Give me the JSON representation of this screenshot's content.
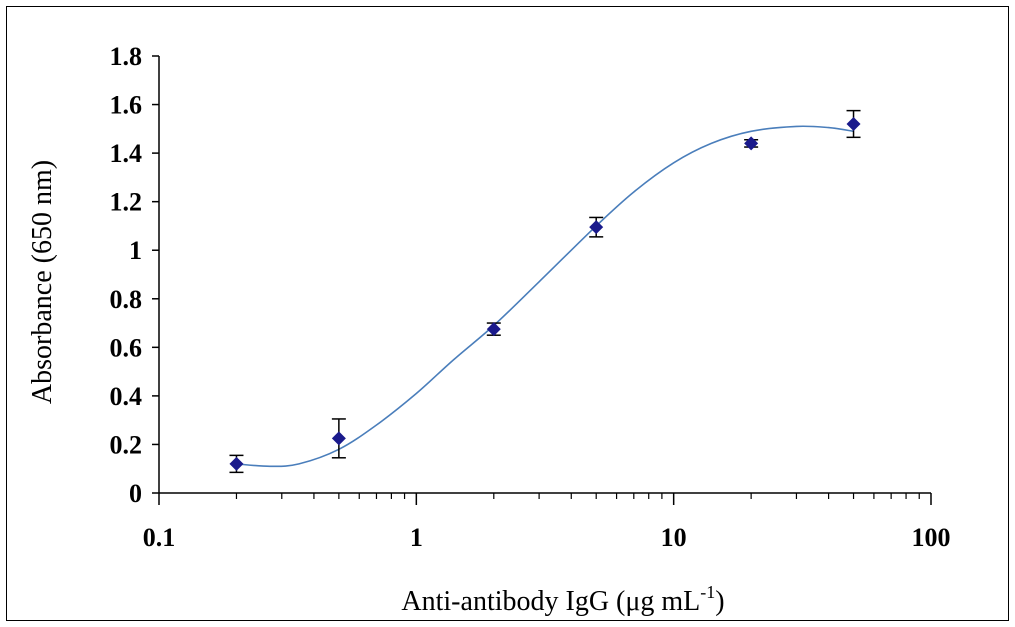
{
  "chart_data": {
    "type": "scatter",
    "xscale": "log",
    "xlim": [
      0.1,
      100
    ],
    "ylim": [
      0,
      1.8
    ],
    "x_ticks": [
      "0.1",
      "1",
      "10",
      "100"
    ],
    "y_ticks": [
      "0",
      "0.2",
      "0.4",
      "0.6",
      "0.8",
      "1",
      "1.2",
      "1.4",
      "1.6",
      "1.8"
    ],
    "xlabel": "Anti-antibody IgG (μg mL",
    "xlabel_sup": "-1",
    "xlabel_end": ")",
    "ylabel": "Absorbance (650 nm)",
    "grid": false,
    "legend": "none",
    "marker_color": "#1a1a8c",
    "curve_color": "#4a7ebb",
    "points": [
      {
        "x": 0.2,
        "y": 0.12,
        "err": 0.035
      },
      {
        "x": 0.5,
        "y": 0.225,
        "err": 0.08
      },
      {
        "x": 2,
        "y": 0.675,
        "err": 0.025
      },
      {
        "x": 5,
        "y": 1.095,
        "err": 0.04
      },
      {
        "x": 20,
        "y": 1.44,
        "err": 0.015
      },
      {
        "x": 50,
        "y": 1.52,
        "err": 0.055
      }
    ],
    "curve": [
      [
        0.2,
        0.12
      ],
      [
        0.27,
        0.11
      ],
      [
        0.35,
        0.12
      ],
      [
        0.5,
        0.18
      ],
      [
        0.7,
        0.28
      ],
      [
        1,
        0.41
      ],
      [
        1.4,
        0.55
      ],
      [
        2,
        0.69
      ],
      [
        3,
        0.87
      ],
      [
        5,
        1.1
      ],
      [
        7,
        1.24
      ],
      [
        10,
        1.36
      ],
      [
        14,
        1.44
      ],
      [
        20,
        1.49
      ],
      [
        30,
        1.51
      ],
      [
        40,
        1.505
      ],
      [
        50,
        1.49
      ]
    ]
  }
}
